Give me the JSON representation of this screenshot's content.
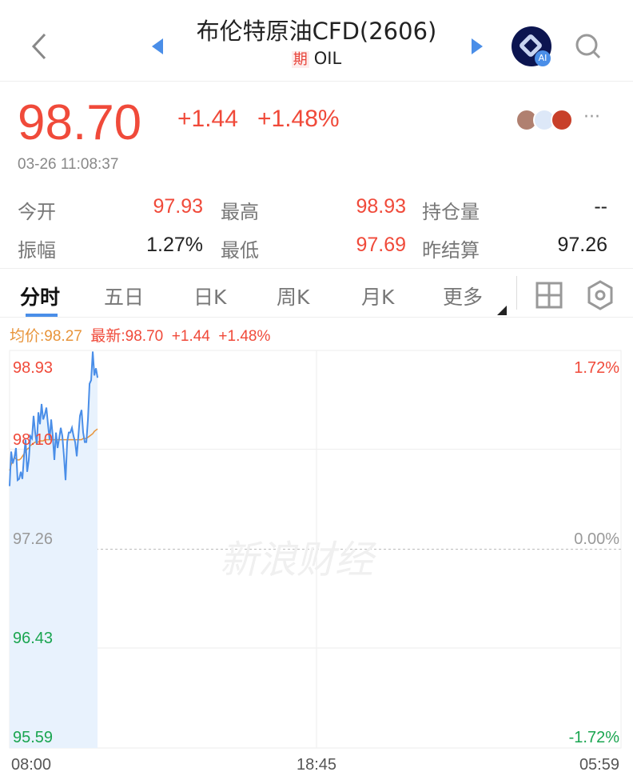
{
  "header": {
    "title": "布伦特原油CFD(2606)",
    "tag": "期",
    "symbol": "OIL",
    "ai_badge": "AI",
    "icons": [
      "back-icon",
      "prev-triangle-icon",
      "next-triangle-icon",
      "ai-assistant-icon",
      "search-icon"
    ]
  },
  "quote": {
    "price": "98.70",
    "change": "+1.44",
    "change_pct": "+1.48%",
    "timestamp": "03-26 11:08:37",
    "more": "···"
  },
  "stats": [
    {
      "label": "今开",
      "value": "97.93",
      "color": "red"
    },
    {
      "label": "最高",
      "value": "98.93",
      "color": "red"
    },
    {
      "label": "持仓量",
      "value": "--",
      "color": "black"
    },
    {
      "label": "振幅",
      "value": "1.27%",
      "color": "black"
    },
    {
      "label": "最低",
      "value": "97.69",
      "color": "red"
    },
    {
      "label": "昨结算",
      "value": "97.26",
      "color": "black"
    }
  ],
  "tabs": [
    {
      "label": "分时",
      "active": true
    },
    {
      "label": "五日"
    },
    {
      "label": "日K"
    },
    {
      "label": "周K"
    },
    {
      "label": "月K"
    },
    {
      "label": "更多"
    }
  ],
  "legend": {
    "avg": "均价:98.27",
    "latest": "最新:98.70",
    "change": "+1.44",
    "change_pct": "+1.48%"
  },
  "watermark": "新浪财经",
  "colors": {
    "up": "#f04a3a",
    "down": "#1aa550",
    "price_line": "#4a8ee8",
    "avg_line": "#e8943a",
    "accent": "#4a8ee8"
  },
  "chart_data": {
    "type": "line",
    "y_left_ticks": [
      "98.93",
      "98.10",
      "97.26",
      "96.43",
      "95.59"
    ],
    "y_right_ticks": [
      "1.72%",
      "0.00%",
      "-1.72%"
    ],
    "x_ticks": [
      "08:00",
      "18:45",
      "05:59"
    ],
    "ylim": [
      95.59,
      98.93
    ],
    "reference": 97.26,
    "x_start": "08:00",
    "x_end": "05:59",
    "interval_minutes": 3.45,
    "series": [
      {
        "name": "最新",
        "values": [
          97.79,
          98.08,
          97.98,
          98.03,
          98.11,
          97.84,
          97.85,
          97.91,
          97.85,
          98.04,
          98.18,
          97.91,
          98.01,
          98.21,
          98.19,
          98.38,
          98.24,
          98.14,
          98.41,
          98.31,
          98.48,
          98.35,
          98.39,
          98.45,
          98.31,
          98.18,
          98.35,
          98.21,
          98.01,
          98.24,
          98.11,
          98.19,
          98.28,
          98.21,
          98.04,
          97.84,
          98.16,
          98.24,
          98.24,
          98.28,
          98.21,
          98.16,
          98.04,
          98.21,
          98.38,
          98.43,
          98.24,
          98.16,
          98.16,
          98.35,
          98.65,
          98.68,
          98.92,
          98.72,
          98.78,
          98.7
        ]
      },
      {
        "name": "均价",
        "values": [
          97.92,
          97.97,
          98.0,
          98.03,
          98.02,
          98.01,
          98.01,
          98.02,
          98.04,
          98.06,
          98.08,
          98.1,
          98.11,
          98.13,
          98.14,
          98.15,
          98.16,
          98.16,
          98.16,
          98.17,
          98.17,
          98.17,
          98.18,
          98.18,
          98.18,
          98.18,
          98.18,
          98.18,
          98.18,
          98.18,
          98.18,
          98.18,
          98.18,
          98.18,
          98.18,
          98.18,
          98.18,
          98.18,
          98.18,
          98.18,
          98.18,
          98.18,
          98.18,
          98.18,
          98.18,
          98.18,
          98.19,
          98.19,
          98.19,
          98.2,
          98.21,
          98.22,
          98.23,
          98.25,
          98.26,
          98.27
        ]
      }
    ]
  }
}
